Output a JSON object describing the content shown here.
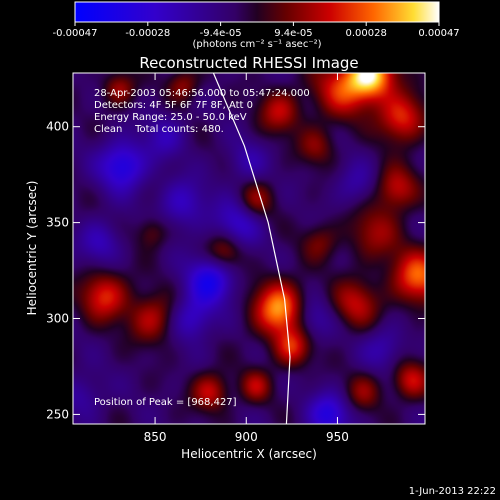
{
  "chart_data": {
    "type": "heatmap",
    "title": "Reconstructed RHESSI Image",
    "xlabel": "Heliocentric X (arcsec)",
    "ylabel": "Heliocentric Y (arcsec)",
    "xlim": [
      805,
      998
    ],
    "ylim": [
      245,
      428
    ],
    "x_ticks": [
      850,
      900,
      950
    ],
    "y_ticks": [
      250,
      300,
      350,
      400
    ],
    "colorbar": {
      "ticks": [
        "-0.00047",
        "-0.00028",
        "-9.4e-05",
        "9.4e-05",
        "0.00028",
        "0.00047"
      ],
      "range": [
        -0.00047,
        0.00047
      ],
      "units_label": "(photons cm⁻² s⁻¹ asec⁻²)"
    },
    "info_lines": [
      "28-Apr-2003 05:46:56.000 to 05:47:24.000",
      "Detectors: 4F 5F 6F 7F 8F, Att 0",
      "Energy Range: 25.0 - 50.0 keV",
      "Clean    Total counts: 480."
    ],
    "peak_label": "Position of Peak = [968,427]",
    "peak": [
      968,
      427
    ],
    "limb": [
      [
        882,
        428
      ],
      [
        899,
        390
      ],
      [
        912,
        350
      ],
      [
        921,
        310
      ],
      [
        924,
        280
      ],
      [
        922,
        245
      ]
    ],
    "sources": [
      {
        "x": 968,
        "y": 427,
        "v": 0.00047,
        "w": 9
      },
      {
        "x": 952,
        "y": 420,
        "v": 0.00026,
        "w": 11
      },
      {
        "x": 985,
        "y": 405,
        "v": 0.0003,
        "w": 9
      },
      {
        "x": 982,
        "y": 368,
        "v": 0.00024,
        "w": 8
      },
      {
        "x": 970,
        "y": 345,
        "v": 0.00018,
        "w": 10
      },
      {
        "x": 994,
        "y": 322,
        "v": 0.00034,
        "w": 10
      },
      {
        "x": 960,
        "y": 308,
        "v": 0.00022,
        "w": 9
      },
      {
        "x": 918,
        "y": 305,
        "v": 0.0004,
        "w": 10
      },
      {
        "x": 925,
        "y": 285,
        "v": 0.00026,
        "w": 7
      },
      {
        "x": 888,
        "y": 335,
        "v": 0.0002,
        "w": 7
      },
      {
        "x": 905,
        "y": 362,
        "v": 0.00018,
        "w": 7
      },
      {
        "x": 918,
        "y": 408,
        "v": 0.00022,
        "w": 8
      },
      {
        "x": 938,
        "y": 390,
        "v": 0.00016,
        "w": 7
      },
      {
        "x": 822,
        "y": 312,
        "v": 0.00028,
        "w": 9
      },
      {
        "x": 848,
        "y": 300,
        "v": 0.00022,
        "w": 9
      },
      {
        "x": 880,
        "y": 262,
        "v": 0.00024,
        "w": 7
      },
      {
        "x": 905,
        "y": 265,
        "v": 0.0002,
        "w": 6
      },
      {
        "x": 830,
        "y": 420,
        "v": 0.0002,
        "w": 6
      },
      {
        "x": 865,
        "y": 422,
        "v": 0.00018,
        "w": 6
      },
      {
        "x": 990,
        "y": 268,
        "v": 0.00024,
        "w": 7
      },
      {
        "x": 964,
        "y": 262,
        "v": 0.00016,
        "w": 7
      },
      {
        "x": 940,
        "y": 340,
        "v": 0.00014,
        "w": 7
      },
      {
        "x": 848,
        "y": 345,
        "v": 0.00014,
        "w": 6
      },
      {
        "x": 832,
        "y": 380,
        "v": -0.0003,
        "w": 9
      },
      {
        "x": 880,
        "y": 320,
        "v": -0.0003,
        "w": 9
      },
      {
        "x": 870,
        "y": 300,
        "v": -0.0002,
        "w": 8
      },
      {
        "x": 895,
        "y": 350,
        "v": -0.0002,
        "w": 9
      },
      {
        "x": 865,
        "y": 360,
        "v": -0.00018,
        "w": 9
      },
      {
        "x": 945,
        "y": 250,
        "v": -0.00026,
        "w": 8
      },
      {
        "x": 935,
        "y": 300,
        "v": -0.00016,
        "w": 8
      },
      {
        "x": 820,
        "y": 340,
        "v": -0.00016,
        "w": 8
      },
      {
        "x": 975,
        "y": 285,
        "v": -0.00014,
        "w": 8
      },
      {
        "x": 855,
        "y": 395,
        "v": -0.00014,
        "w": 8
      },
      {
        "x": 900,
        "y": 382,
        "v": -0.00012,
        "w": 8
      },
      {
        "x": 960,
        "y": 370,
        "v": -0.00012,
        "w": 8
      },
      {
        "x": 810,
        "y": 260,
        "v": -0.00012,
        "w": 8
      }
    ],
    "background_level": -6e-05,
    "grid": false
  },
  "date_stamp": "1-Jun-2013 22:22",
  "colors": {
    "background": "#000000",
    "axes": "#ffffff",
    "limb": "#ffffff"
  }
}
